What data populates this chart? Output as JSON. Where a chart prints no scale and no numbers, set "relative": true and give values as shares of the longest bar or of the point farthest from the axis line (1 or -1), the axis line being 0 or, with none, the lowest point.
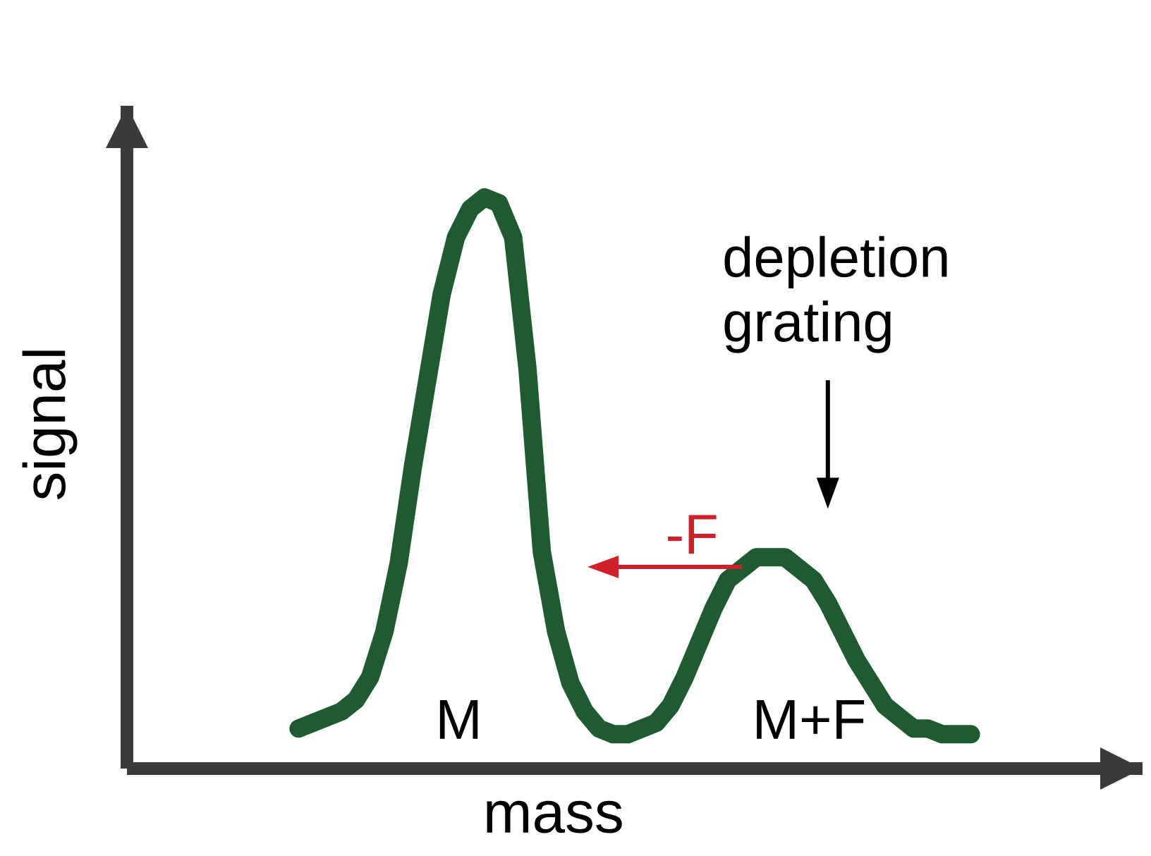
{
  "chart_data": {
    "type": "line",
    "relative": true,
    "xlabel": "mass",
    "ylabel": "signal",
    "color": "#1e5b30",
    "categories": [
      null,
      null,
      null,
      null,
      null,
      null,
      null,
      null,
      null,
      null,
      null,
      null,
      null,
      null,
      null,
      null,
      null,
      null,
      null,
      null,
      null,
      null,
      null,
      null,
      null,
      null,
      null,
      null,
      null,
      null,
      null,
      null,
      null,
      null,
      null,
      null,
      null,
      null,
      null,
      null,
      null,
      null,
      null,
      null,
      null,
      null,
      null,
      null
    ],
    "values": [
      0.07,
      0.08,
      0.09,
      0.1,
      0.12,
      0.16,
      0.24,
      0.36,
      0.53,
      0.68,
      0.83,
      0.93,
      0.98,
      1,
      0.99,
      0.93,
      0.7,
      0.38,
      0.24,
      0.15,
      0.1,
      0.07,
      0.06,
      0.06,
      0.07,
      0.08,
      0.11,
      0.16,
      0.22,
      0.28,
      0.33,
      0.35,
      0.37,
      0.37,
      0.37,
      0.35,
      0.33,
      0.29,
      0.24,
      0.19,
      0.15,
      0.11,
      0.09,
      0.07,
      0.07,
      0.06,
      0.06,
      0.06
    ],
    "annotations": [
      "M",
      "M+F",
      "depletion grating",
      "-F"
    ]
  }
}
